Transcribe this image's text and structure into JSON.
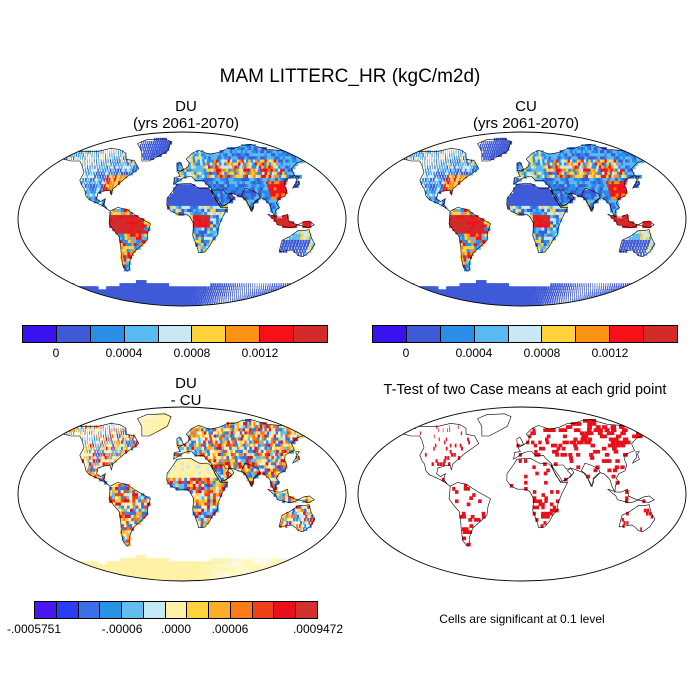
{
  "title": "MAM LITTERC_HR (kgC/m2d)",
  "panels": [
    {
      "id": "du",
      "title_line1": "DU",
      "title_line2": "(yrs 2061-2070)"
    },
    {
      "id": "cu",
      "title_line1": "CU",
      "title_line2": "(yrs 2061-2070)"
    },
    {
      "id": "diff",
      "title_line1": "DU",
      "title_line2": "- CU"
    },
    {
      "id": "ttest",
      "title_line1": "T-Test of two Case means at each grid point"
    }
  ],
  "colorbar_top": {
    "colors": [
      "#3a12f0",
      "#3f5ad6",
      "#2a8ee8",
      "#58baf0",
      "#c9e8f5",
      "#fdd23a",
      "#fb9116",
      "#f5101a",
      "#d32a2a"
    ],
    "tick_labels": [
      "0",
      "0.0004",
      "0.0008",
      "0.0012"
    ]
  },
  "colorbar_diff": {
    "colors": [
      "#4a16f2",
      "#2a3df0",
      "#3a6fe8",
      "#2a92e4",
      "#62bdf0",
      "#c6e7f4",
      "#fff2a6",
      "#fdd23a",
      "#fcae2a",
      "#f97b1a",
      "#f0401a",
      "#e8101a",
      "#d33030"
    ],
    "tick_labels": [
      "-.0005751",
      "-.00006",
      ".0000",
      ".00006",
      ".0009472"
    ]
  },
  "ttest_note": "Cells are significant at 0.1 level",
  "colors": {
    "ocean": "#ffffff",
    "land_base": "#3f5ad6",
    "diff_base": "#fff2a6",
    "sig": "#e8101a"
  }
}
